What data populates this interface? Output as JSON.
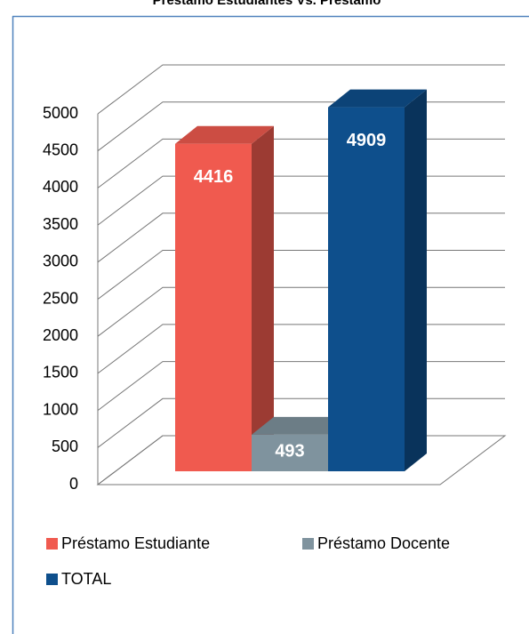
{
  "chart_data": {
    "type": "bar3d",
    "title": "Préstamo Estudiantes Vs. Préstamo",
    "series": [
      {
        "name": "Préstamo Estudiante",
        "color": "#f05a4f",
        "values": [
          4416
        ]
      },
      {
        "name": "Préstamo Docente",
        "color": "#7f939e",
        "values": [
          493
        ]
      },
      {
        "name": "TOTAL",
        "color": "#0e4f8c",
        "values": [
          4909
        ]
      }
    ],
    "ylim": [
      0,
      5000
    ],
    "yticks": [
      0,
      500,
      1000,
      1500,
      2000,
      2500,
      3000,
      3500,
      4000,
      4500,
      5000
    ],
    "grid": true,
    "legend": "bottom"
  }
}
